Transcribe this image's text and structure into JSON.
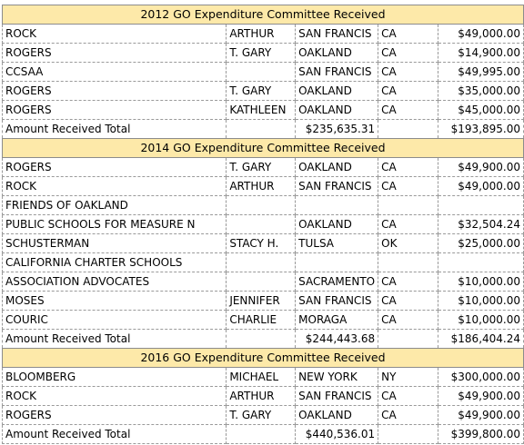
{
  "sections": [
    {
      "title": "2012 GO Expenditure Committee Received",
      "rows": [
        [
          "ROCK",
          "ARTHUR",
          "SAN FRANCIS",
          "CA",
          "$49,000.00"
        ],
        [
          "ROGERS",
          "T. GARY",
          "OAKLAND",
          "CA",
          "$14,900.00"
        ],
        [
          "CCSAA",
          "",
          "SAN FRANCIS",
          "CA",
          "$49,995.00"
        ],
        [
          "ROGERS",
          "T. GARY",
          "OAKLAND",
          "CA",
          "$35,000.00"
        ],
        [
          "ROGERS",
          "KATHLEEN",
          "OAKLAND",
          "CA",
          "$45,000.00"
        ]
      ],
      "total": [
        "Amount Received Total",
        "",
        "$235,635.31",
        "",
        "$193,895.00"
      ]
    },
    {
      "title": "2014 GO Expenditure Committee Received",
      "rows": [
        [
          "ROGERS",
          "T. GARY",
          "OAKLAND",
          "CA",
          "$49,900.00"
        ],
        [
          "ROCK",
          "ARTHUR",
          "SAN FRANCIS",
          "CA",
          "$49,000.00"
        ],
        [
          "FRIENDS OF OAKLAND",
          "",
          "",
          "",
          ""
        ],
        [
          "PUBLIC SCHOOLS FOR MEASURE N",
          "",
          "OAKLAND",
          "CA",
          "$32,504.24"
        ],
        [
          "SCHUSTERMAN",
          "STACY H.",
          "TULSA",
          "OK",
          "$25,000.00"
        ],
        [
          "CALIFORNIA CHARTER SCHOOLS",
          "",
          "",
          "",
          ""
        ],
        [
          "ASSOCIATION ADVOCATES",
          "",
          "SACRAMENTO",
          "CA",
          "$10,000.00"
        ],
        [
          "MOSES",
          "JENNIFER",
          "SAN FRANCIS",
          "CA",
          "$10,000.00"
        ],
        [
          "COURIC",
          "CHARLIE",
          "MORAGA",
          "CA",
          "$10,000.00"
        ]
      ],
      "total": [
        "Amount Received Total",
        "",
        "$244,443.68",
        "",
        "$186,404.24"
      ]
    },
    {
      "title": "2016 GO Expenditure Committee Received",
      "rows": [
        [
          "BLOOMBERG",
          "MICHAEL",
          "NEW YORK",
          "NY",
          "$300,000.00"
        ],
        [
          "ROCK",
          "ARTHUR",
          "SAN FRANCIS",
          "CA",
          "$49,900.00"
        ],
        [
          "ROGERS",
          "T. GARY",
          "OAKLAND",
          "CA",
          "$49,900.00"
        ]
      ],
      "total": [
        "Amount Received Total",
        "",
        "$440,536.01",
        "",
        "$399,800.00"
      ]
    }
  ]
}
